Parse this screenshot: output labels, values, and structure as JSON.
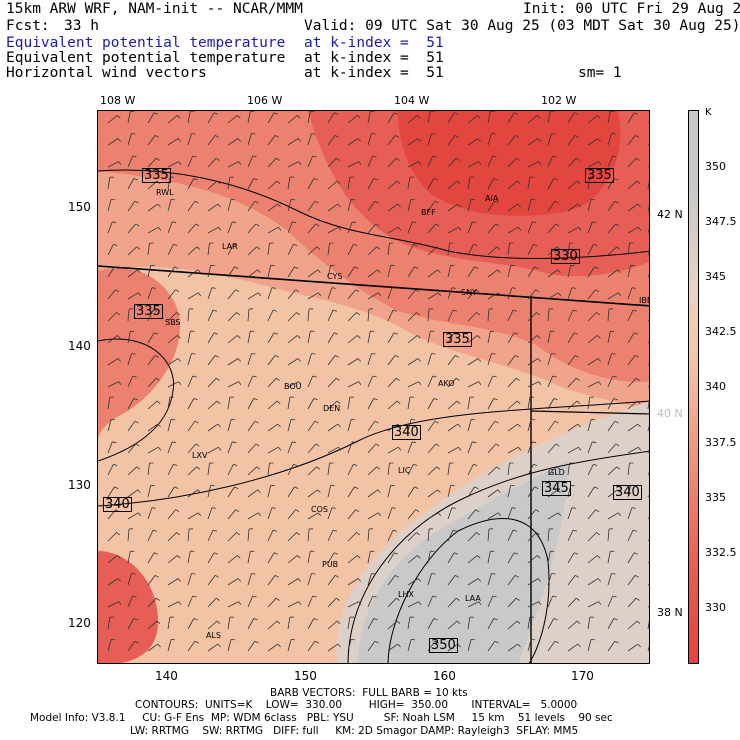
{
  "header": {
    "model": "15km ARW WRF, NAM-init -- NCAR/MMM",
    "init": "Init: 00 UTC Fri 29 Aug 25",
    "fcst_label": "Fcst:",
    "fcst_value": "33 h",
    "valid": "Valid: 09 UTC Sat 30 Aug 25 (03 MDT Sat 30 Aug 25)",
    "fields": [
      {
        "name": "Equivalent potential temperature",
        "level": "at k-index =  51",
        "color": "#1a1ab0"
      },
      {
        "name": "Equivalent potential temperature",
        "level": "at k-index =  51",
        "color": "#000000"
      },
      {
        "name": "Horizontal wind vectors",
        "level": "at k-index =  51",
        "color": "#000000"
      }
    ],
    "smoothing": "sm= 1"
  },
  "map": {
    "lon_labels": [
      "108 W",
      "106 W",
      "104 W",
      "102 W"
    ],
    "lat_labels_right": [
      "42 N",
      "40 N",
      "38 N"
    ],
    "grid_x_labels": [
      "140",
      "150",
      "160",
      "170"
    ],
    "grid_y_labels": [
      "150",
      "140",
      "130",
      "120"
    ],
    "stations": [
      "RWL",
      "LAR",
      "CYS",
      "SNY",
      "BFF",
      "AIA",
      "IBE",
      "SBS",
      "BOU",
      "DEN",
      "AKO",
      "LXV",
      "LIC",
      "GLD",
      "COS",
      "PUB",
      "LHX",
      "LAA",
      "ALS"
    ],
    "contour_labels": [
      "335",
      "335",
      "330",
      "335",
      "335",
      "340",
      "345",
      "340",
      "340",
      "350"
    ]
  },
  "colorbar": {
    "unit": "K",
    "ticks": [
      "350",
      "347.5",
      "345",
      "342.5",
      "340",
      "337.5",
      "335",
      "332.5",
      "330"
    ]
  },
  "footer": {
    "barbs": "BARB VECTORS:  FULL BARB = 10 kts",
    "contours": "CONTOURS:  UNITS=K    LOW=  330.00        HIGH=  350.00       INTERVAL=   5.0000",
    "model_info_1": "Model Info: V3.8.1     CU: G-F Ens  MP: WDM 6class   PBL: YSU         SF: Noah LSM     15 km    51 levels    90 sec",
    "model_info_2": "LW: RRTMG    SW: RRTMG   DIFF: full     KM: 2D Smagor DAMP: Rayleigh3  SFLAY: MM5"
  }
}
